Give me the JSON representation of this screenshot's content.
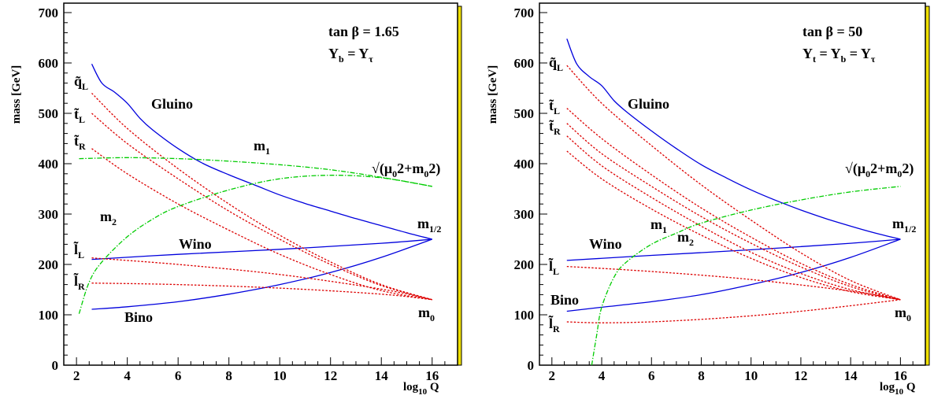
{
  "chart_data": [
    {
      "type": "line",
      "annotation_lines": [
        "tan β = 1.65",
        "Y_b = Y_τ"
      ],
      "ylabel": "mass [GeV]",
      "xlabel": "log10 Q",
      "xlim": [
        1.5,
        17
      ],
      "ylim": [
        0,
        700
      ],
      "xticks": [
        2,
        4,
        6,
        8,
        10,
        12,
        14,
        16
      ],
      "yticks": [
        0,
        100,
        200,
        300,
        400,
        500,
        600,
        700
      ],
      "grid": false,
      "colors": {
        "gaugino": "#0000dd",
        "sfermion": "#dd0000",
        "higgs": "#00cc00"
      },
      "series": [
        {
          "name": "Gluino",
          "color_key": "gaugino",
          "style": "solid",
          "x": [
            2.6,
            3.0,
            3.5,
            4.0,
            4.5,
            5.0,
            6.0,
            7.0,
            8.0,
            9.0,
            10.0,
            11.0,
            12.0,
            13.0,
            14.0,
            15.0,
            16.0
          ],
          "y": [
            598,
            560,
            542,
            520,
            490,
            467,
            430,
            400,
            378,
            358,
            338,
            321,
            306,
            291,
            277,
            263,
            250
          ]
        },
        {
          "name": "Wino",
          "color_key": "gaugino",
          "style": "solid",
          "x": [
            2.6,
            6.0,
            10.0,
            14.0,
            16.0
          ],
          "y": [
            210,
            220,
            230,
            242,
            250
          ]
        },
        {
          "name": "Bino",
          "color_key": "gaugino",
          "style": "solid",
          "x": [
            2.6,
            4.0,
            6.0,
            8.0,
            10.0,
            12.0,
            14.0,
            16.0
          ],
          "y": [
            111,
            116,
            126,
            141,
            160,
            184,
            214,
            250
          ]
        },
        {
          "name": "q̃L",
          "color_key": "sfermion",
          "style": "dotted",
          "x": [
            2.6,
            4.0,
            6.0,
            8.0,
            10.0,
            12.0,
            14.0,
            16.0
          ],
          "y": [
            540,
            470,
            390,
            320,
            258,
            205,
            160,
            130
          ]
        },
        {
          "name": "t̃L",
          "color_key": "sfermion",
          "style": "dotted",
          "x": [
            2.6,
            4.0,
            6.0,
            8.0,
            10.0,
            12.0,
            14.0,
            16.0
          ],
          "y": [
            500,
            440,
            370,
            306,
            250,
            200,
            158,
            130
          ]
        },
        {
          "name": "t̃R",
          "color_key": "sfermion",
          "style": "dotted",
          "x": [
            2.6,
            4.0,
            6.0,
            8.0,
            10.0,
            12.0,
            14.0,
            16.0
          ],
          "y": [
            430,
            380,
            320,
            268,
            220,
            180,
            148,
            130
          ]
        },
        {
          "name": "l̃L",
          "color_key": "sfermion",
          "style": "dotted",
          "x": [
            2.6,
            6.0,
            10.0,
            14.0,
            16.0
          ],
          "y": [
            213,
            200,
            180,
            151,
            130
          ]
        },
        {
          "name": "l̃R",
          "color_key": "sfermion",
          "style": "dotted",
          "x": [
            2.6,
            6.0,
            10.0,
            14.0,
            16.0
          ],
          "y": [
            163,
            160,
            153,
            141,
            130
          ]
        },
        {
          "name": "m1",
          "color_key": "higgs",
          "style": "dashdot",
          "x": [
            2.1,
            4.0,
            6.0,
            8.0,
            10.0,
            12.0,
            14.0,
            16.0
          ],
          "y": [
            410,
            412,
            410,
            405,
            398,
            388,
            373,
            355
          ]
        },
        {
          "name": "m2",
          "color_key": "higgs",
          "style": "dashdot",
          "x": [
            2.1,
            2.5,
            3.0,
            4.0,
            5.0,
            6.0,
            8.0,
            10.0,
            12.0,
            14.0,
            16.0
          ],
          "y": [
            102,
            165,
            205,
            255,
            290,
            315,
            348,
            370,
            377,
            372,
            355
          ]
        }
      ],
      "curve_labels": [
        "Gluino",
        "Wino",
        "Bino",
        "m1",
        "m2",
        "m1/2",
        "m0",
        "q̃L",
        "t̃L",
        "t̃R",
        "l̃L",
        "l̃R",
        "√(μ0²+m0²)"
      ]
    },
    {
      "type": "line",
      "annotation_lines": [
        "tan β = 50",
        "Y_t = Y_b = Y_τ"
      ],
      "ylabel": "mass [GeV]",
      "xlabel": "log10 Q",
      "xlim": [
        1.5,
        17
      ],
      "ylim": [
        0,
        700
      ],
      "xticks": [
        2,
        4,
        6,
        8,
        10,
        12,
        14,
        16
      ],
      "yticks": [
        0,
        100,
        200,
        300,
        400,
        500,
        600,
        700
      ],
      "grid": false,
      "colors": {
        "gaugino": "#0000dd",
        "sfermion": "#dd0000",
        "higgs": "#00cc00"
      },
      "series": [
        {
          "name": "Gluino",
          "color_key": "gaugino",
          "style": "solid",
          "x": [
            2.6,
            3.0,
            3.5,
            4.0,
            4.5,
            5.0,
            6.0,
            7.0,
            8.0,
            9.0,
            10.0,
            11.0,
            12.0,
            13.0,
            14.0,
            15.0,
            16.0
          ],
          "y": [
            648,
            598,
            573,
            555,
            525,
            503,
            465,
            430,
            398,
            372,
            348,
            327,
            308,
            291,
            276,
            262,
            250
          ]
        },
        {
          "name": "Wino",
          "color_key": "gaugino",
          "style": "solid",
          "x": [
            2.6,
            6.0,
            10.0,
            14.0,
            16.0
          ],
          "y": [
            208,
            218,
            229,
            242,
            250
          ]
        },
        {
          "name": "Bino",
          "color_key": "gaugino",
          "style": "solid",
          "x": [
            2.6,
            4.0,
            6.0,
            8.0,
            10.0,
            12.0,
            14.0,
            16.0
          ],
          "y": [
            107,
            115,
            126,
            140,
            160,
            184,
            214,
            250
          ]
        },
        {
          "name": "q̃L",
          "color_key": "sfermion",
          "style": "dotted",
          "x": [
            2.6,
            4.0,
            6.0,
            8.0,
            10.0,
            12.0,
            14.0,
            16.0
          ],
          "y": [
            595,
            520,
            436,
            358,
            288,
            223,
            168,
            130
          ]
        },
        {
          "name": "t̃L",
          "color_key": "sfermion",
          "style": "dotted",
          "x": [
            2.6,
            4.0,
            6.0,
            8.0,
            10.0,
            12.0,
            14.0,
            16.0
          ],
          "y": [
            510,
            450,
            378,
            312,
            254,
            202,
            160,
            130
          ]
        },
        {
          "name": "t̃R",
          "color_key": "sfermion",
          "style": "dotted",
          "x": [
            2.6,
            4.0,
            6.0,
            8.0,
            10.0,
            12.0,
            14.0,
            16.0
          ],
          "y": [
            480,
            420,
            355,
            295,
            242,
            195,
            156,
            130
          ]
        },
        {
          "name": "m1",
          "color_key": "sfermion",
          "style": "dotted",
          "x": [
            2.6,
            4.0,
            6.0,
            8.0,
            10.0,
            12.0,
            14.0,
            16.0
          ],
          "y": [
            455,
            396,
            333,
            276,
            224,
            182,
            150,
            130
          ]
        },
        {
          "name": "m2",
          "color_key": "sfermion",
          "style": "dotted",
          "x": [
            2.6,
            4.0,
            6.0,
            8.0,
            10.0,
            12.0,
            14.0,
            16.0
          ],
          "y": [
            425,
            370,
            310,
            258,
            212,
            174,
            146,
            130
          ]
        },
        {
          "name": "l̃L",
          "color_key": "sfermion",
          "style": "dotted",
          "x": [
            2.6,
            6.0,
            10.0,
            14.0,
            16.0
          ],
          "y": [
            196,
            186,
            170,
            147,
            130
          ]
        },
        {
          "name": "l̃R",
          "color_key": "sfermion",
          "style": "dotted",
          "x": [
            2.6,
            4.0,
            6.0,
            8.0,
            10.0,
            12.0,
            14.0,
            16.0
          ],
          "y": [
            86,
            84,
            86,
            91,
            98,
            107,
            118,
            130
          ]
        },
        {
          "name": "√(μ0²+m0²)",
          "color_key": "higgs",
          "style": "dashdot",
          "x": [
            3.6,
            3.8,
            4.0,
            4.5,
            5.0,
            6.0,
            7.0,
            8.0,
            10.0,
            12.0,
            14.0,
            16.0
          ],
          "y": [
            0,
            60,
            115,
            175,
            205,
            240,
            262,
            282,
            308,
            328,
            344,
            355
          ]
        }
      ],
      "curve_labels": [
        "Gluino",
        "Wino",
        "Bino",
        "m1",
        "m2",
        "m1/2",
        "m0",
        "q̃L",
        "t̃L",
        "t̃R",
        "l̃L",
        "l̃R",
        "√(μ0²+m0²)"
      ]
    }
  ]
}
